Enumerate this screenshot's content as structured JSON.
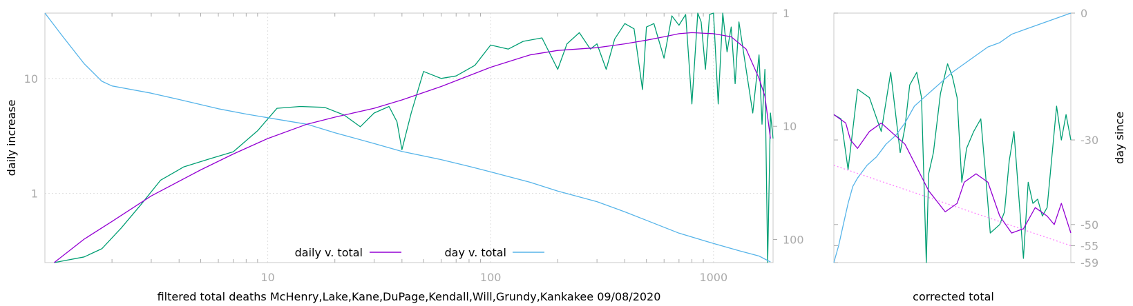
{
  "chart_data": [
    {
      "type": "line",
      "title": "",
      "xlabel": "filtered total deaths McHenry,Lake,Kane,DuPage,Kendall,Will,Grundy,Kankakee 09/08/2020",
      "ylabel": "daily increase",
      "y2label": "",
      "x_scale": "log",
      "y_scale": "log",
      "y2_scale": "log-inverted",
      "xlim": [
        1,
        1850
      ],
      "ylim": [
        0.25,
        37
      ],
      "y2lim": [
        1,
        160
      ],
      "xticks": [
        {
          "v": 10,
          "label": "10"
        },
        {
          "v": 100,
          "label": "100"
        },
        {
          "v": 1000,
          "label": "1000"
        }
      ],
      "yticks": [
        {
          "v": 1,
          "label": "1"
        },
        {
          "v": 10,
          "label": "10"
        }
      ],
      "y2ticks": [
        {
          "v": 1,
          "label": "1"
        },
        {
          "v": 10,
          "label": "10"
        },
        {
          "v": 100,
          "label": "100"
        }
      ],
      "grid": true,
      "legend": "bottom-center",
      "series": [
        {
          "name": "daily v. total",
          "color": "#9400d3",
          "axis": "y",
          "x": [
            1.1,
            1.5,
            2,
            3,
            5,
            7,
            10,
            15,
            20,
            30,
            40,
            60,
            100,
            150,
            200,
            300,
            400,
            500,
            600,
            700,
            800,
            1000,
            1200,
            1400,
            1600,
            1700,
            1800
          ],
          "y": [
            0.25,
            0.4,
            0.57,
            0.95,
            1.6,
            2.2,
            3,
            4,
            4.6,
            5.5,
            6.5,
            8.5,
            12.5,
            16,
            17.5,
            18.5,
            20,
            21.5,
            23,
            24.5,
            25,
            24.5,
            23,
            18,
            10,
            7,
            3
          ]
        },
        {
          "name": "day v. total",
          "color": "#56b4e9",
          "axis": "y2",
          "x": [
            1,
            1.2,
            1.5,
            1.8,
            2,
            3,
            4,
            6,
            8,
            10,
            15,
            20,
            30,
            40,
            60,
            80,
            100,
            150,
            200,
            300,
            400,
            500,
            700,
            1000,
            1300,
            1600,
            1800
          ],
          "y": [
            1,
            1.6,
            2.8,
            4,
            4.4,
            5.1,
            5.8,
            7,
            7.8,
            8.4,
            9.6,
            11.4,
            14.2,
            16.7,
            19.7,
            22.6,
            25.3,
            31.2,
            37.4,
            46.3,
            57,
            67.7,
            87.9,
            108.5,
            125.6,
            140,
            158
          ]
        },
        {
          "name": "",
          "color": "#009e73",
          "axis": "y",
          "x": [
            1.1,
            1.5,
            1.8,
            2.2,
            2.7,
            3.3,
            4.2,
            5.5,
            7,
            9,
            11,
            14,
            18,
            22,
            26,
            30,
            35,
            38,
            40,
            44,
            50,
            60,
            70,
            85,
            100,
            120,
            140,
            170,
            200,
            220,
            250,
            280,
            300,
            330,
            360,
            400,
            440,
            480,
            500,
            540,
            600,
            650,
            700,
            750,
            800,
            850,
            880,
            920,
            960,
            1000,
            1050,
            1100,
            1150,
            1200,
            1250,
            1300,
            1400,
            1500,
            1600,
            1650,
            1700,
            1750,
            1800,
            1850
          ],
          "y": [
            0.25,
            0.28,
            0.33,
            0.5,
            0.8,
            1.3,
            1.7,
            2,
            2.3,
            3.5,
            5.5,
            5.7,
            5.6,
            4.8,
            3.8,
            5,
            5.7,
            4.2,
            2.4,
            5,
            11.5,
            10,
            10.5,
            13,
            19.5,
            18,
            21,
            22.5,
            12,
            20,
            25,
            18,
            20,
            12,
            22,
            30,
            27,
            8,
            28,
            30,
            15,
            35,
            29,
            36,
            6,
            38,
            31,
            12,
            36,
            38,
            6,
            37,
            17,
            28,
            9,
            31,
            12,
            5,
            16,
            4,
            12,
            0.25,
            5,
            3
          ]
        }
      ]
    },
    {
      "type": "line",
      "title": "",
      "xlabel": "corrected total",
      "ylabel": "",
      "y2label": "day since",
      "y2ticks": [
        {
          "v": 0,
          "label": "0"
        },
        {
          "v": -30,
          "label": "-30"
        },
        {
          "v": -50,
          "label": "-50"
        },
        {
          "v": -55,
          "label": "-55"
        },
        {
          "v": -59,
          "label": "-59"
        }
      ],
      "y2lim": [
        -59,
        0
      ],
      "legend": "none",
      "series": [
        {
          "name": "",
          "color": "#9400d3",
          "x": [
            0,
            0.05,
            0.07,
            0.1,
            0.15,
            0.2,
            0.3,
            0.4,
            0.47,
            0.52,
            0.55,
            0.6,
            0.65,
            0.7,
            0.75,
            0.8,
            0.85,
            0.9,
            0.93,
            0.96,
            1
          ],
          "y": [
            -24,
            -26,
            -30,
            -32,
            -28,
            -26,
            -31,
            -42,
            -47,
            -45,
            -40,
            -38,
            -40,
            -48,
            -52,
            -51,
            -46,
            -48,
            -50,
            -45,
            -52
          ]
        },
        {
          "name": "",
          "color": "#ff80ff",
          "dashed": true,
          "x": [
            0,
            1
          ],
          "y": [
            -36,
            -55
          ]
        },
        {
          "name": "",
          "color": "#009e73",
          "x": [
            0,
            0.03,
            0.06,
            0.1,
            0.15,
            0.2,
            0.24,
            0.28,
            0.3,
            0.32,
            0.35,
            0.37,
            0.39,
            0.4,
            0.42,
            0.45,
            0.48,
            0.5,
            0.52,
            0.54,
            0.56,
            0.59,
            0.62,
            0.64,
            0.66,
            0.7,
            0.72,
            0.74,
            0.76,
            0.8,
            0.82,
            0.84,
            0.86,
            0.88,
            0.9,
            0.94,
            0.96,
            0.98,
            1
          ],
          "y": [
            -24,
            -25,
            -37,
            -18,
            -20,
            -28,
            -14,
            -33,
            -27,
            -17,
            -14,
            -20,
            -59,
            -38,
            -33,
            -19,
            -12,
            -15,
            -20,
            -40,
            -32,
            -28,
            -25,
            -38,
            -52,
            -50,
            -47,
            -35,
            -28,
            -58,
            -40,
            -45,
            -44,
            -48,
            -46,
            -22,
            -30,
            -24,
            -30
          ]
        },
        {
          "name": "",
          "color": "#56b4e9",
          "x": [
            0,
            0.02,
            0.04,
            0.06,
            0.08,
            0.1,
            0.14,
            0.18,
            0.22,
            0.26,
            0.3,
            0.34,
            0.38,
            0.42,
            0.46,
            0.5,
            0.55,
            0.6,
            0.65,
            0.7,
            0.75,
            0.8,
            0.85,
            0.9,
            0.95,
            1
          ],
          "y": [
            -59,
            -55,
            -50,
            -45,
            -41,
            -39,
            -36,
            -34,
            -31,
            -29,
            -26,
            -22,
            -20,
            -18,
            -16,
            -14,
            -12,
            -10,
            -8,
            -7,
            -5,
            -4,
            -3,
            -2,
            -1,
            0
          ]
        }
      ]
    }
  ]
}
